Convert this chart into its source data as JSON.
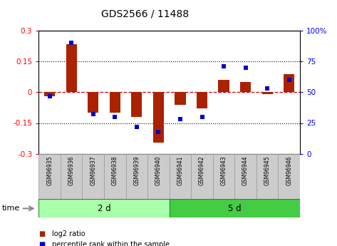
{
  "title": "GDS2566 / 11488",
  "samples": [
    "GSM96935",
    "GSM96936",
    "GSM96937",
    "GSM96938",
    "GSM96939",
    "GSM96940",
    "GSM96941",
    "GSM96942",
    "GSM96943",
    "GSM96944",
    "GSM96945",
    "GSM96946"
  ],
  "log2_ratio": [
    -0.02,
    0.235,
    -0.1,
    -0.1,
    -0.12,
    -0.245,
    -0.06,
    -0.08,
    0.06,
    0.05,
    -0.01,
    0.09
  ],
  "percentile_rank": [
    47,
    90,
    32,
    30,
    22,
    18,
    28,
    30,
    71,
    70,
    53,
    60
  ],
  "groups": [
    {
      "label": "2 d",
      "start": 0,
      "end": 6,
      "color": "#aaffaa"
    },
    {
      "label": "5 d",
      "start": 6,
      "end": 12,
      "color": "#44cc44"
    }
  ],
  "ylim": [
    -0.3,
    0.3
  ],
  "yticks_left": [
    -0.3,
    -0.15,
    0.0,
    0.15,
    0.3
  ],
  "yticks_right": [
    0,
    25,
    50,
    75,
    100
  ],
  "bar_color": "#aa2200",
  "dot_color": "#0000cc",
  "hline_color": "#cc0000",
  "grid_color": "black",
  "tick_box_color": "#cccccc",
  "tick_box_edge": "#999999",
  "time_label": "time",
  "legend_entries": [
    "log2 ratio",
    "percentile rank within the sample"
  ],
  "legend_colors": [
    "#aa2200",
    "#0000cc"
  ]
}
